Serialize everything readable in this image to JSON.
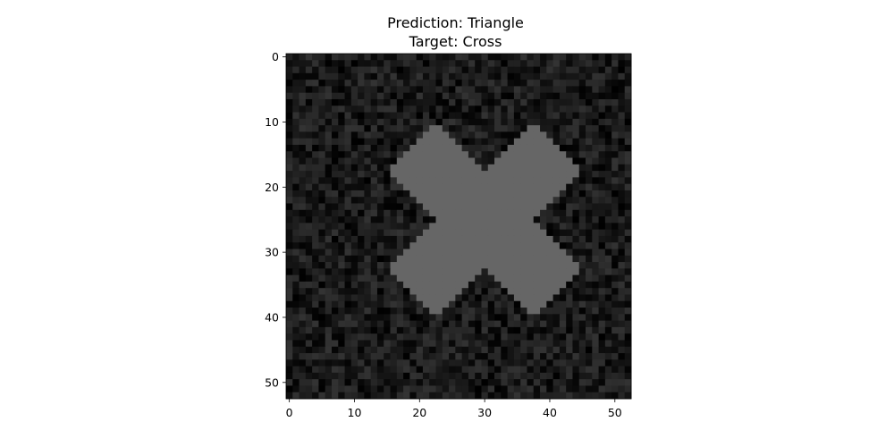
{
  "chart_data": {
    "type": "heatmap",
    "title_lines": [
      "Prediction: Triangle",
      "Target: Cross"
    ],
    "image_size": [
      53,
      53
    ],
    "xlim": [
      -0.5,
      52.5
    ],
    "ylim": [
      52.5,
      -0.5
    ],
    "x_ticks": [
      0,
      10,
      20,
      30,
      40,
      50
    ],
    "y_ticks": [
      0,
      10,
      20,
      30,
      40,
      50
    ],
    "x_tick_labels": [
      "0",
      "10",
      "20",
      "30",
      "40",
      "50"
    ],
    "y_tick_labels": [
      "0",
      "10",
      "20",
      "30",
      "40",
      "50"
    ],
    "colormap": "gray",
    "background_noise_range": [
      0.0,
      0.2
    ],
    "shape": {
      "label": "Cross",
      "center": [
        30,
        25
      ],
      "arm_half_length": 16,
      "arm_half_width": 5,
      "intensity": 0.4
    }
  }
}
